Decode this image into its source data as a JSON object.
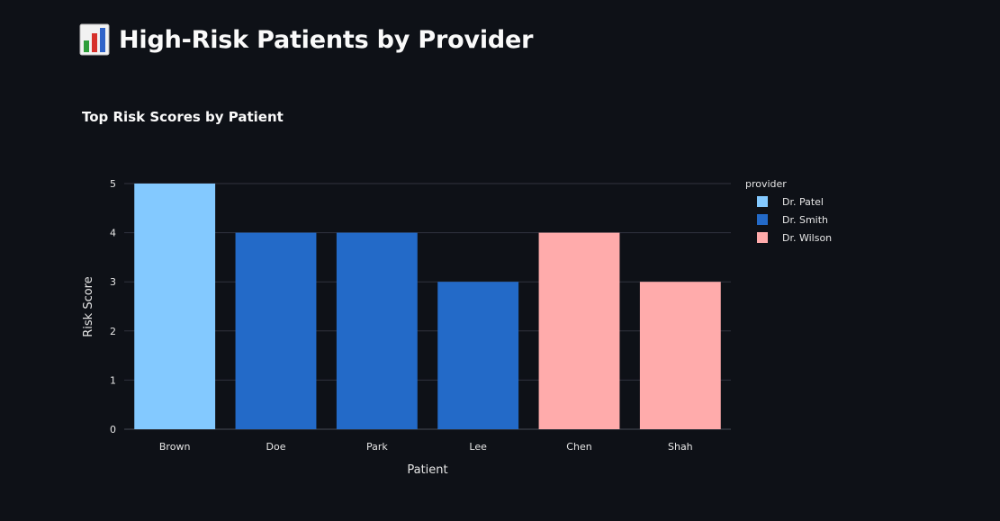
{
  "header": {
    "title": "High-Risk Patients by Provider",
    "icon": "bar-chart-icon"
  },
  "chart_data": {
    "type": "bar",
    "title": "Top Risk Scores by Patient",
    "xlabel": "Patient",
    "ylabel": "Risk Score",
    "ylim": [
      0,
      5
    ],
    "yticks": [
      "0",
      "1",
      "2",
      "3",
      "4",
      "5"
    ],
    "categories": [
      "Brown",
      "Doe",
      "Park",
      "Lee",
      "Chen",
      "Shah"
    ],
    "values": [
      5,
      4,
      4,
      3,
      4,
      3
    ],
    "providers": [
      "Dr. Patel",
      "Dr. Smith",
      "Dr. Smith",
      "Dr. Smith",
      "Dr. Wilson",
      "Dr. Wilson"
    ],
    "legend": {
      "title": "provider",
      "position": "top-right",
      "items": [
        {
          "name": "Dr. Patel",
          "color": "#83c9ff"
        },
        {
          "name": "Dr. Smith",
          "color": "#236ac8"
        },
        {
          "name": "Dr. Wilson",
          "color": "#ffabab"
        }
      ]
    },
    "grid": true
  },
  "colors": {
    "background": "#0e1117",
    "grid": "#31333f",
    "text": "#fafafa"
  }
}
